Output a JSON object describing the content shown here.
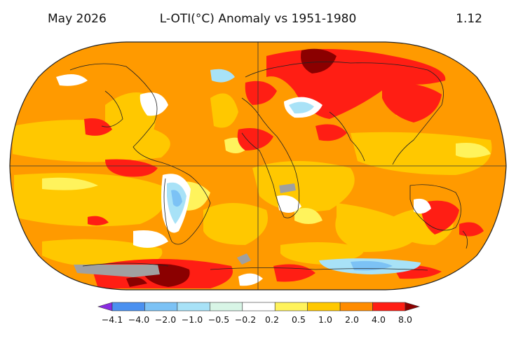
{
  "header": {
    "date": "May 2026",
    "title": "L-OTI(°C) Anomaly vs 1951-1980",
    "global_mean": "1.12"
  },
  "colorbar": {
    "bins": [
      {
        "color": "#8a2be2"
      },
      {
        "color": "#4a90f0"
      },
      {
        "color": "#7cc2f5"
      },
      {
        "color": "#a8e2f7"
      },
      {
        "color": "#d8f5e6"
      },
      {
        "color": "#ffffff"
      },
      {
        "color": "#fff35c"
      },
      {
        "color": "#ffc800"
      },
      {
        "color": "#ff8c00"
      },
      {
        "color": "#ff1e14"
      },
      {
        "color": "#8b0000"
      }
    ],
    "ticks": [
      "−4.1",
      "−4.0",
      "−2.0",
      "−1.0",
      "−0.5",
      "−0.2",
      "0.2",
      "0.5",
      "1.0",
      "2.0",
      "4.0",
      "8.0"
    ]
  },
  "map": {
    "projection": "robinson",
    "background_color": "#ff9a00",
    "missing_color": "#a0a0a0",
    "gridlines": [
      "equator",
      "prime-meridian"
    ]
  }
}
